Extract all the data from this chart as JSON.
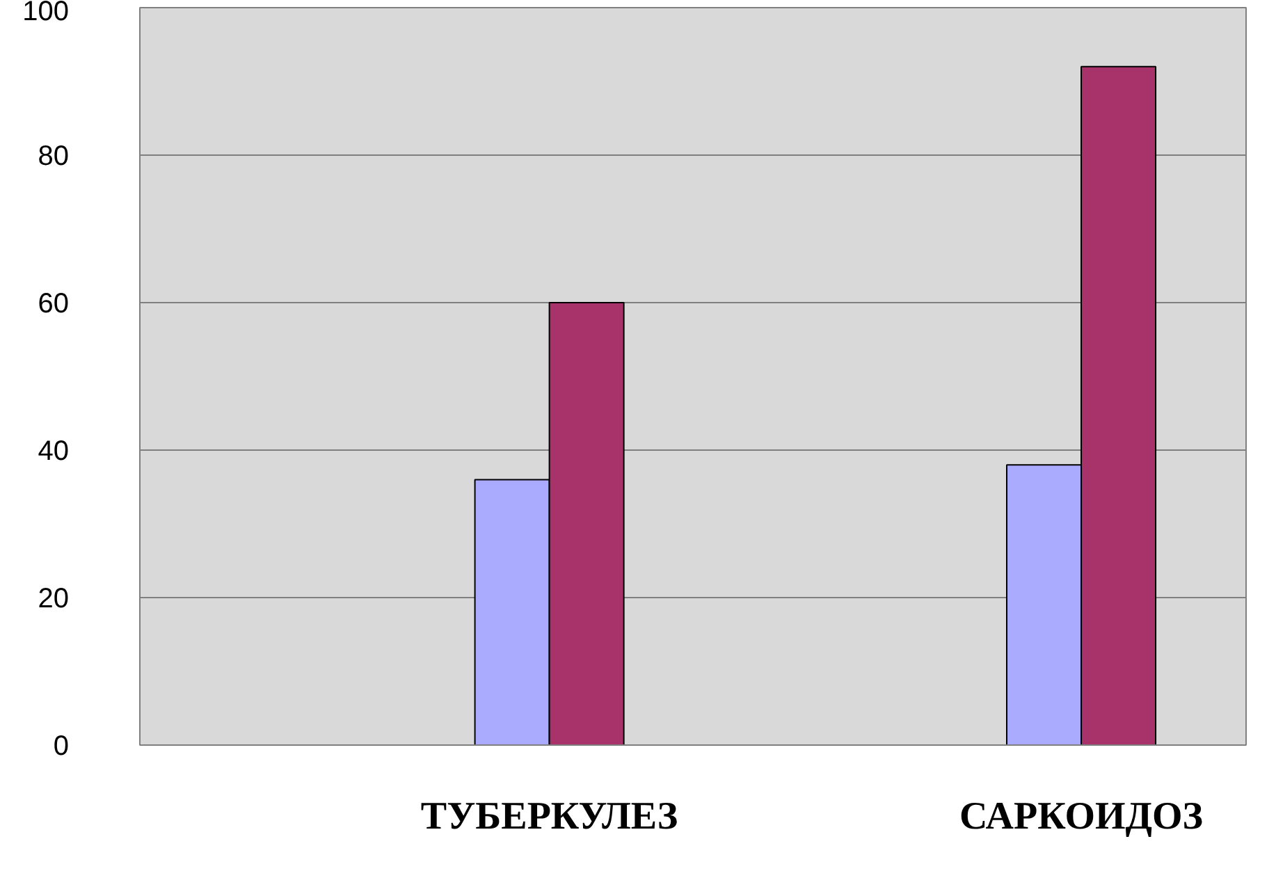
{
  "chart_data": {
    "type": "bar",
    "categories": [
      "ТУБЕРКУЛЕЗ",
      "САРКОИДОЗ"
    ],
    "series": [
      {
        "color": "#aaaaff",
        "values": [
          36,
          38
        ]
      },
      {
        "color": "#a8336b",
        "values": [
          60,
          92
        ]
      }
    ],
    "ylim": [
      0,
      100
    ],
    "yticks": [
      0,
      20,
      40,
      60,
      80,
      100
    ],
    "grid": "y"
  }
}
